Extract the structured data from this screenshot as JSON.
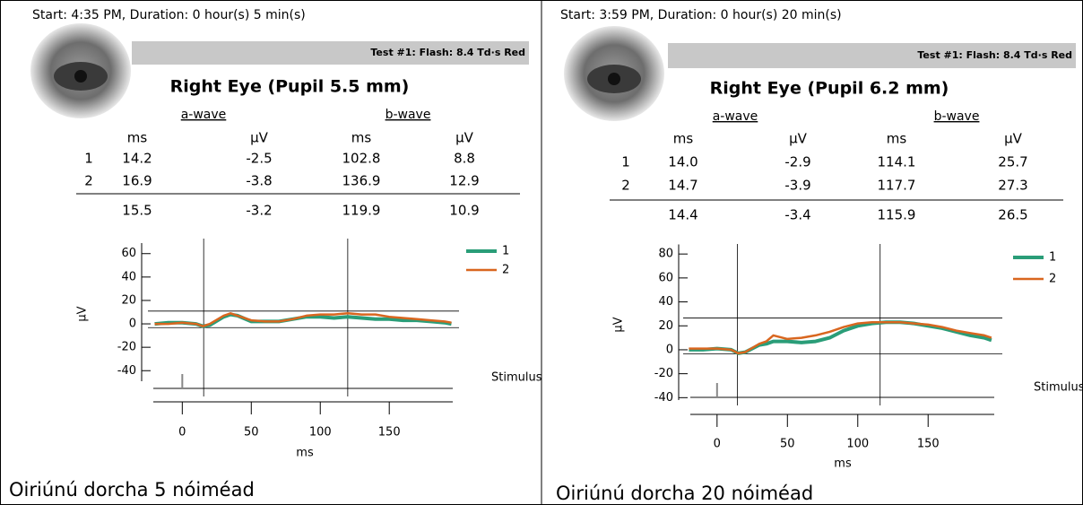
{
  "panels": [
    {
      "start": "Start: 4:35 PM, Duration: 0 hour(s) 5 min(s)",
      "test": "Test #1:  Flash: 8.4 Td·s Red",
      "eye": "Right Eye (Pupil 5.5 mm)",
      "table": {
        "groups": [
          "a-wave",
          "b-wave"
        ],
        "columns": [
          "ms",
          "µV",
          "ms",
          "µV"
        ],
        "rows": [
          {
            "label": "1",
            "values": [
              "14.2",
              "-2.5",
              "102.8",
              "8.8"
            ]
          },
          {
            "label": "2",
            "values": [
              "16.9",
              "-3.8",
              "136.9",
              "12.9"
            ]
          }
        ],
        "average": [
          "15.5",
          "-3.2",
          "119.9",
          "10.9"
        ]
      },
      "stimulus": "Stimulus",
      "caption": "Oiriúnú dorcha 5 nóiméad"
    },
    {
      "start": "Start: 3:59 PM, Duration: 0 hour(s) 20 min(s)",
      "test": "Test #1:  Flash: 8.4 Td·s Red",
      "eye": "Right Eye (Pupil 6.2 mm)",
      "table": {
        "groups": [
          "a-wave",
          "b-wave"
        ],
        "columns": [
          "ms",
          "µV",
          "ms",
          "µV"
        ],
        "rows": [
          {
            "label": "1",
            "values": [
              "14.0",
              "-2.9",
              "114.1",
              "25.7"
            ]
          },
          {
            "label": "2",
            "values": [
              "14.7",
              "-3.9",
              "117.7",
              "27.3"
            ]
          }
        ],
        "average": [
          "14.4",
          "-3.4",
          "115.9",
          "26.5"
        ]
      },
      "stimulus": "Stimulus",
      "caption": "Oiriúnú dorcha 20 nóiméad"
    }
  ],
  "chart_data": [
    {
      "type": "line",
      "xlabel": "ms",
      "ylabel": "µV",
      "x": [
        -20,
        -10,
        0,
        10,
        15,
        20,
        30,
        35,
        40,
        50,
        60,
        70,
        80,
        90,
        100,
        110,
        120,
        130,
        140,
        150,
        160,
        170,
        180,
        190,
        195
      ],
      "series": [
        {
          "name": "1",
          "color": "#2a9d78",
          "values": [
            0,
            1,
            1,
            0,
            -2,
            -1,
            6,
            8,
            7,
            2,
            2,
            2,
            4,
            6,
            6,
            5,
            6,
            5,
            4,
            4,
            3,
            3,
            2,
            1,
            0
          ]
        },
        {
          "name": "2",
          "color": "#d9661f",
          "values": [
            0,
            0,
            1,
            0,
            -2,
            0,
            7,
            9,
            7,
            3,
            2,
            2,
            4,
            7,
            8,
            8,
            9,
            8,
            8,
            6,
            5,
            4,
            3,
            2,
            1
          ]
        }
      ],
      "xlim": [
        -21,
        196
      ],
      "ylim": [
        -49,
        69
      ],
      "xticks": [
        0,
        50,
        100,
        150
      ],
      "yticks": [
        60,
        40,
        20,
        0,
        -20,
        -40
      ]
    },
    {
      "type": "line",
      "xlabel": "ms",
      "ylabel": "µV",
      "x": [
        -20,
        -10,
        0,
        10,
        15,
        20,
        30,
        35,
        40,
        50,
        60,
        70,
        80,
        90,
        100,
        110,
        120,
        130,
        140,
        150,
        160,
        170,
        180,
        190,
        195
      ],
      "series": [
        {
          "name": "1",
          "color": "#2a9d78",
          "values": [
            0,
            0,
            1,
            0,
            -3,
            -2,
            4,
            5,
            7,
            7,
            6,
            7,
            10,
            16,
            20,
            22,
            23,
            23,
            22,
            20,
            18,
            15,
            12,
            10,
            8
          ]
        },
        {
          "name": "2",
          "color": "#d9661f",
          "values": [
            1,
            1,
            1,
            0,
            -3,
            -2,
            5,
            7,
            12,
            9,
            10,
            12,
            15,
            19,
            22,
            23,
            23,
            23,
            22,
            21,
            19,
            16,
            14,
            12,
            10
          ]
        }
      ],
      "xlim": [
        -19,
        197
      ],
      "ylim": [
        -42,
        88
      ],
      "xticks": [
        0,
        50,
        100,
        150
      ],
      "yticks": [
        80,
        60,
        40,
        20,
        0,
        -20,
        -40
      ]
    }
  ]
}
